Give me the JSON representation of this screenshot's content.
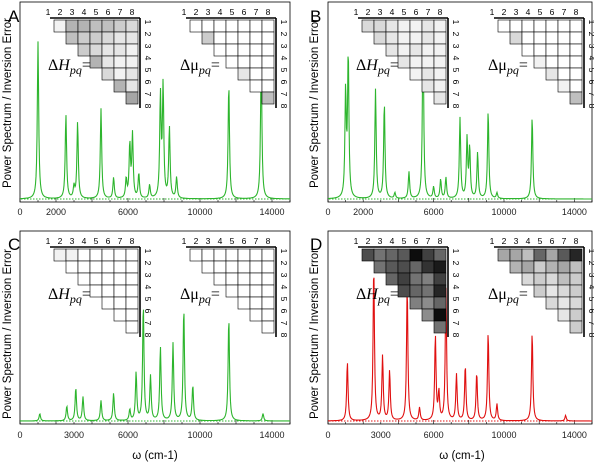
{
  "figure": {
    "ylabel": "Power Spectrum / Inversion Error",
    "xlabel": "ω (cm-1)"
  },
  "matrix_labels": {
    "delta": "Δ",
    "H": "H",
    "mu": "μ",
    "sub": "pq",
    "eq": "="
  },
  "indices": [
    "1",
    "2",
    "3",
    "4",
    "5",
    "6",
    "7",
    "8"
  ],
  "colors": {
    "green": "#2db52d",
    "red": "#e01010"
  },
  "chart_data": [
    {
      "type": "line",
      "panel": "A",
      "color": "green",
      "xlim": [
        0,
        15000
      ],
      "xticks": [
        "0",
        "2000",
        "6000",
        "10000",
        "14000"
      ],
      "peaks": [
        [
          1000,
          0.82
        ],
        [
          2550,
          0.44
        ],
        [
          3000,
          0.06
        ],
        [
          3200,
          0.4
        ],
        [
          4500,
          0.47
        ],
        [
          5200,
          0.11
        ],
        [
          5900,
          0.1
        ],
        [
          6100,
          0.28
        ],
        [
          6250,
          0.33
        ],
        [
          6600,
          0.13
        ],
        [
          7200,
          0.07
        ],
        [
          7800,
          0.53
        ],
        [
          7950,
          0.58
        ],
        [
          8300,
          0.37
        ],
        [
          8700,
          0.11
        ],
        [
          11600,
          0.6
        ],
        [
          13400,
          0.74
        ]
      ],
      "matrices": {
        "H": [
          [
            0.05,
            0.3,
            0.3,
            0.25,
            0.25,
            0.2,
            0.15
          ],
          [
            0.25,
            0.2,
            0.2,
            0.15,
            0.1,
            0.1
          ],
          [
            0.2,
            0.15,
            0.1,
            0.1,
            0.05
          ],
          [
            0.3,
            0.1,
            0.05,
            0.05
          ],
          [
            0.15,
            0.05,
            0.1
          ],
          [
            0.3,
            0.1
          ],
          [
            0.35
          ]
        ],
        "mu": [
          [
            0,
            0,
            0,
            0,
            0,
            0,
            0
          ],
          [
            0.2,
            0,
            0,
            0,
            0,
            0
          ],
          [
            0,
            0,
            0,
            0,
            0
          ],
          [
            0,
            0,
            0,
            0
          ],
          [
            0.1,
            0,
            0
          ],
          [
            0,
            0
          ],
          [
            0.25
          ]
        ]
      }
    },
    {
      "type": "line",
      "panel": "B",
      "color": "green",
      "xlim": [
        0,
        15000
      ],
      "xticks": [
        "0",
        "2000",
        "6000",
        "10000",
        "14000"
      ],
      "peaks": [
        [
          1000,
          0.55
        ],
        [
          1150,
          0.75
        ],
        [
          2700,
          0.57
        ],
        [
          3200,
          0.5
        ],
        [
          3800,
          0.03
        ],
        [
          4600,
          0.14
        ],
        [
          5400,
          0.88
        ],
        [
          6000,
          0.06
        ],
        [
          6400,
          0.1
        ],
        [
          6700,
          0.11
        ],
        [
          7500,
          0.42
        ],
        [
          7900,
          0.31
        ],
        [
          8050,
          0.26
        ],
        [
          8500,
          0.24
        ],
        [
          9100,
          0.46
        ],
        [
          9600,
          0.03
        ],
        [
          11600,
          0.43
        ]
      ],
      "matrices": {
        "H": [
          [
            0.15,
            0.15,
            0.1,
            0.05,
            0.05,
            0.1,
            0.05
          ],
          [
            0.15,
            0.1,
            0.05,
            0.05,
            0.1,
            0.05
          ],
          [
            0.1,
            0.05,
            0.1,
            0.05,
            0.05
          ],
          [
            0.1,
            0.05,
            0.05,
            0.05
          ],
          [
            0.05,
            0.1,
            0.05
          ],
          [
            0.1,
            0.05
          ],
          [
            0.1
          ]
        ],
        "mu": [
          [
            0,
            0,
            0,
            0,
            0,
            0,
            0
          ],
          [
            0.15,
            0,
            0,
            0,
            0,
            0
          ],
          [
            0,
            0,
            0,
            0,
            0
          ],
          [
            0.05,
            0,
            0,
            0
          ],
          [
            0.1,
            0,
            0
          ],
          [
            0.05,
            0
          ],
          [
            0.25
          ]
        ]
      }
    },
    {
      "type": "line",
      "panel": "C",
      "color": "green",
      "xlim": [
        0,
        15000
      ],
      "xticks": [
        "0",
        "3000",
        "6000",
        "10000",
        "14000"
      ],
      "peaks": [
        [
          1100,
          0.04
        ],
        [
          2600,
          0.08
        ],
        [
          3100,
          0.18
        ],
        [
          3500,
          0.13
        ],
        [
          4500,
          0.11
        ],
        [
          5200,
          0.15
        ],
        [
          6100,
          0.06
        ],
        [
          6450,
          0.26
        ],
        [
          6850,
          0.63
        ],
        [
          7250,
          0.24
        ],
        [
          7800,
          0.4
        ],
        [
          8500,
          0.42
        ],
        [
          9100,
          0.61
        ],
        [
          9600,
          0.19
        ],
        [
          11600,
          0.56
        ],
        [
          13500,
          0.04
        ]
      ],
      "matrices": {
        "H": [
          [
            0.05,
            0.05,
            0,
            0,
            0,
            0,
            0
          ],
          [
            0,
            0,
            0,
            0,
            0,
            0
          ],
          [
            0,
            0,
            0,
            0,
            0
          ],
          [
            0,
            0,
            0,
            0
          ],
          [
            0,
            0,
            0
          ],
          [
            0,
            0
          ],
          [
            0
          ]
        ],
        "mu": [
          [
            0,
            0,
            0,
            0,
            0,
            0,
            0
          ],
          [
            0,
            0,
            0,
            0,
            0,
            0
          ],
          [
            0,
            0,
            0,
            0,
            0
          ],
          [
            0,
            0,
            0,
            0
          ],
          [
            0,
            0,
            0
          ],
          [
            0,
            0
          ],
          [
            0
          ]
        ]
      }
    },
    {
      "type": "line",
      "panel": "D",
      "color": "red",
      "xlim": [
        0,
        15000
      ],
      "xticks": [
        "0",
        "3000",
        "6000",
        "10000",
        "14000"
      ],
      "peaks": [
        [
          1100,
          0.32
        ],
        [
          2600,
          0.84
        ],
        [
          3100,
          0.35
        ],
        [
          3500,
          0.27
        ],
        [
          4500,
          0.73
        ],
        [
          5200,
          0.07
        ],
        [
          6100,
          0.46
        ],
        [
          6300,
          0.15
        ],
        [
          6700,
          0.72
        ],
        [
          7300,
          0.25
        ],
        [
          7800,
          0.3
        ],
        [
          8450,
          0.26
        ],
        [
          9100,
          0.48
        ],
        [
          9600,
          0.09
        ],
        [
          11600,
          0.48
        ],
        [
          13500,
          0.03
        ]
      ],
      "matrices": {
        "H": [
          [
            0.7,
            0.55,
            0.6,
            0.65,
            0.95,
            0.75,
            0.6
          ],
          [
            0.55,
            0.65,
            0.7,
            0.6,
            0.8,
            0.9
          ],
          [
            0.6,
            0.75,
            0.55,
            0.5,
            0.75
          ],
          [
            0.7,
            0.6,
            0.55,
            0.85
          ],
          [
            0.5,
            0.45,
            0.6
          ],
          [
            0.45,
            0.95
          ],
          [
            0.55
          ]
        ],
        "mu": [
          [
            0.35,
            0.35,
            0.25,
            0.6,
            0.35,
            0.65,
            0.85
          ],
          [
            0.3,
            0.35,
            0.2,
            0.3,
            0.35,
            0.25
          ],
          [
            0.15,
            0.2,
            0.15,
            0.25,
            0.2
          ],
          [
            0.2,
            0.1,
            0.15,
            0.2
          ],
          [
            0.15,
            0.1,
            0.15
          ],
          [
            0.1,
            0.2
          ],
          [
            0.2
          ]
        ]
      }
    }
  ]
}
